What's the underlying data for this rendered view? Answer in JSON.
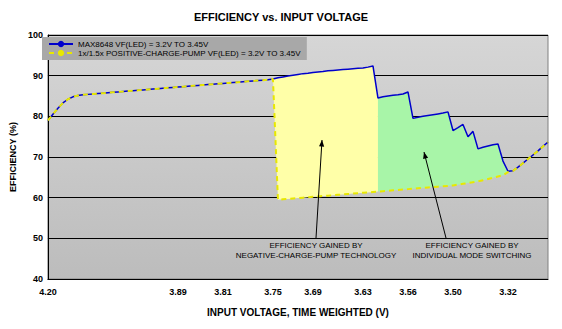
{
  "chart_data": {
    "type": "line",
    "title": "EFFICIENCY vs. INPUT VOLTAGE",
    "x_label": "INPUT VOLTAGE, TIME WEIGHTED (V)",
    "y_label": "EFFICIENCY (%)",
    "categories": [
      "4.20",
      null,
      null,
      null,
      null,
      null,
      null,
      null,
      null,
      null,
      null,
      null,
      null,
      null,
      null,
      null,
      null,
      null,
      null,
      null,
      null,
      null,
      null,
      null,
      null,
      null,
      "3.89",
      null,
      null,
      null,
      null,
      null,
      null,
      null,
      null,
      "3.81",
      null,
      null,
      null,
      null,
      null,
      null,
      null,
      null,
      null,
      "3.75",
      null,
      null,
      null,
      null,
      null,
      null,
      null,
      "3.69",
      null,
      null,
      null,
      null,
      null,
      null,
      null,
      null,
      null,
      "3.63",
      null,
      null,
      null,
      null,
      null,
      null,
      null,
      null,
      "3.56",
      null,
      null,
      null,
      null,
      null,
      null,
      null,
      null,
      "3.50",
      null,
      null,
      null,
      null,
      null,
      null,
      null,
      null,
      null,
      null,
      "3.32",
      null,
      null,
      null,
      null,
      null,
      null,
      null,
      null
    ],
    "series": [
      {
        "name": "MAX8648 VF(LED) = 3.2V TO 3.45V",
        "color": "#0000cc",
        "line_style": "solid",
        "values": [
          79.0,
          80.5,
          82.0,
          83.3,
          84.2,
          84.8,
          85.1,
          85.3,
          85.4,
          85.5,
          85.6,
          85.7,
          85.8,
          85.9,
          86.0,
          86.1,
          86.2,
          86.3,
          86.4,
          86.5,
          86.6,
          86.7,
          86.8,
          86.9,
          87.0,
          87.1,
          87.2,
          87.3,
          87.4,
          87.5,
          87.6,
          87.7,
          87.8,
          87.9,
          88.0,
          88.1,
          88.2,
          88.3,
          88.4,
          88.5,
          88.6,
          88.7,
          88.8,
          88.9,
          89.0,
          89.2,
          89.5,
          89.7,
          89.9,
          90.1,
          90.3,
          90.5,
          90.6,
          90.8,
          90.9,
          91.0,
          91.2,
          91.3,
          91.4,
          91.5,
          91.6,
          91.7,
          91.8,
          91.9,
          92.1,
          92.4,
          84.5,
          84.8,
          85.0,
          85.2,
          85.3,
          85.5,
          86.0,
          79.5,
          79.8,
          80.0,
          80.2,
          80.4,
          80.6,
          80.8,
          81.1,
          76.5,
          77.2,
          78.0,
          75.0,
          76.3,
          72.0,
          72.4,
          72.7,
          73.0,
          73.2,
          69.0,
          66.5,
          66.6,
          67.5,
          68.5,
          69.5,
          70.5,
          71.5,
          72.6,
          73.7
        ]
      },
      {
        "name": "1x/1.5x POSITIVE-CHARGE-PUMP VF(LED) = 3.2V TO 3.45V",
        "color": "#e8e800",
        "line_style": "dashed",
        "values": [
          79.0,
          80.5,
          82.0,
          83.3,
          84.2,
          84.8,
          85.1,
          85.3,
          85.4,
          85.5,
          85.6,
          85.7,
          85.8,
          85.9,
          86.0,
          86.1,
          86.2,
          86.3,
          86.4,
          86.5,
          86.6,
          86.7,
          86.8,
          86.9,
          87.0,
          87.1,
          87.2,
          87.3,
          87.4,
          87.5,
          87.6,
          87.7,
          87.8,
          87.9,
          88.0,
          88.1,
          88.2,
          88.3,
          88.4,
          88.5,
          88.6,
          88.7,
          88.8,
          88.9,
          89.0,
          89.2,
          59.5,
          59.6,
          59.7,
          59.8,
          59.9,
          60.0,
          60.1,
          60.2,
          60.3,
          60.4,
          60.5,
          60.6,
          60.7,
          60.8,
          60.9,
          61.0,
          61.1,
          61.2,
          61.3,
          61.4,
          61.5,
          61.6,
          61.7,
          61.8,
          61.9,
          62.0,
          62.1,
          62.2,
          62.3,
          62.4,
          62.5,
          62.6,
          62.7,
          62.8,
          62.9,
          63.0,
          63.2,
          63.4,
          63.6,
          63.8,
          64.0,
          64.3,
          64.6,
          64.9,
          65.2,
          65.5,
          66.3,
          66.6,
          67.5,
          68.5,
          69.5,
          70.5,
          71.5,
          72.6,
          73.7
        ]
      }
    ],
    "ylim": [
      40,
      100
    ],
    "yticks": [
      40,
      50,
      60,
      70,
      80,
      90,
      100
    ],
    "grid": true,
    "legend": "top-left",
    "annotations": [
      {
        "text": "EFFICIENCY GAINED BY\nNEGATIVE-CHARGE-PUMP TECHNOLOGY",
        "color": "#ffffa8",
        "span": [
          45,
          66
        ]
      },
      {
        "text": "EFFICIENCY GAINED BY\nINDIVIDUAL MODE SWITCHING",
        "color": "#a8f5a8",
        "span": [
          66,
          92
        ]
      }
    ]
  }
}
